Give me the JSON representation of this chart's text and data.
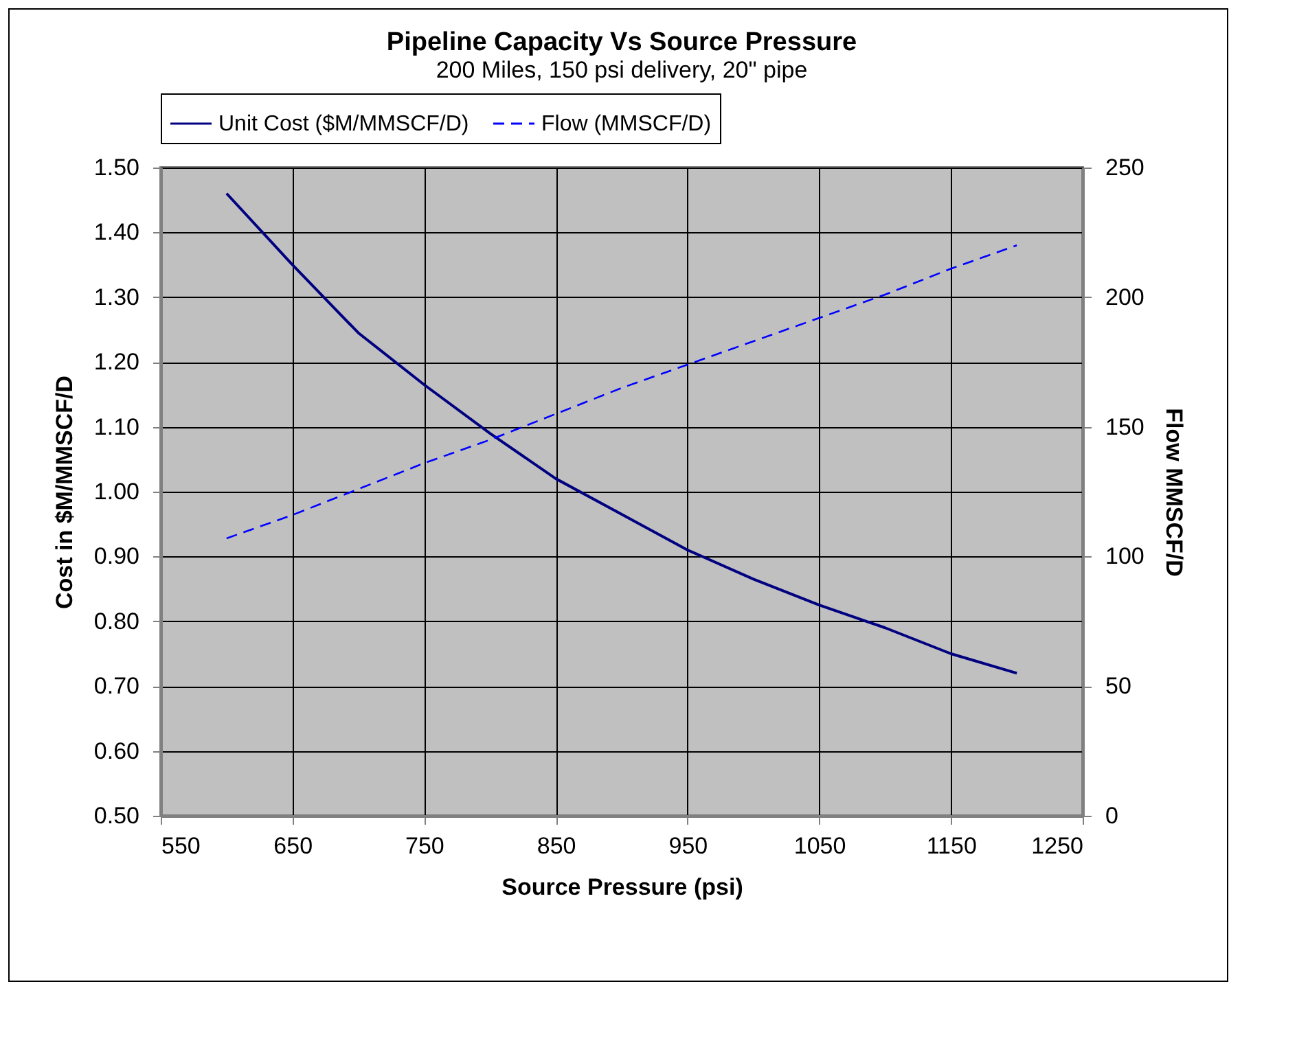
{
  "chart_data": {
    "type": "line",
    "title": "Pipeline Capacity Vs Source Pressure",
    "subtitle": "200 Miles, 150 psi delivery, 20\" pipe",
    "xlabel": "Source Pressure (psi)",
    "ylabel": "Cost in $M/MMSCF/D",
    "y2label": "Flow MMSCF/D",
    "x": [
      600,
      650,
      700,
      750,
      800,
      850,
      900,
      950,
      1000,
      1050,
      1100,
      1150,
      1200
    ],
    "series": [
      {
        "name": "Unit Cost ($M/MMSCF/D)",
        "color": "#000080",
        "line_style": "solid",
        "values": [
          1.46,
          1.35,
          1.245,
          1.165,
          1.09,
          1.02,
          0.965,
          0.91,
          0.865,
          0.825,
          0.79,
          0.75,
          0.72
        ]
      },
      {
        "name": "Flow (MMSCF/D)",
        "color": "#0000ff",
        "line_style": "dashed",
        "axis": "y2",
        "values": [
          107,
          116,
          126,
          136,
          145,
          155,
          165,
          174,
          183,
          192,
          201,
          211,
          220
        ]
      }
    ],
    "xlim": [
      550,
      1250
    ],
    "xticks": [
      550,
      650,
      750,
      850,
      950,
      1050,
      1150,
      1250
    ],
    "ylim": [
      0.5,
      1.5
    ],
    "yticks": [
      {
        "value": 0.5,
        "label": "0.50"
      },
      {
        "value": 0.6,
        "label": "0.60"
      },
      {
        "value": 0.7,
        "label": "0.70"
      },
      {
        "value": 0.8,
        "label": "0.80"
      },
      {
        "value": 0.9,
        "label": "0.90"
      },
      {
        "value": 1.0,
        "label": "1.00"
      },
      {
        "value": 1.1,
        "label": "1.10"
      },
      {
        "value": 1.2,
        "label": "1.20"
      },
      {
        "value": 1.3,
        "label": "1.30"
      },
      {
        "value": 1.4,
        "label": "1.40"
      },
      {
        "value": 1.5,
        "label": "1.50"
      }
    ],
    "y2lim": [
      0,
      250
    ],
    "y2ticks": [
      0,
      50,
      100,
      150,
      200,
      250
    ],
    "grid": true,
    "legend": "top",
    "marker": "none"
  }
}
